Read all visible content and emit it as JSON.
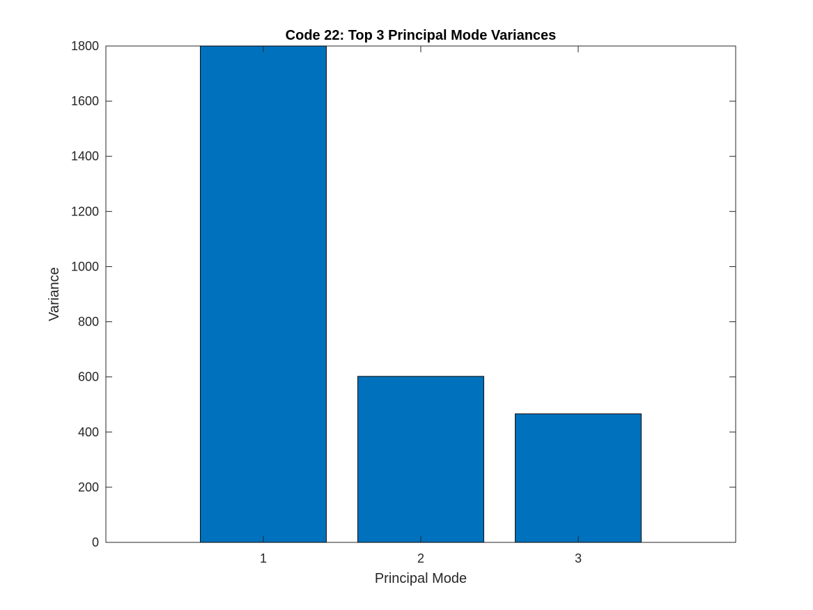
{
  "chart_data": {
    "type": "bar",
    "title": "Code 22: Top 3 Principal Mode Variances",
    "xlabel": "Principal Mode",
    "ylabel": "Variance",
    "categories": [
      "1",
      "2",
      "3"
    ],
    "values": [
      1800,
      602,
      466
    ],
    "xlim": [
      0,
      4
    ],
    "ylim": [
      0,
      1800
    ],
    "yticks": [
      0,
      200,
      400,
      600,
      800,
      1000,
      1200,
      1400,
      1600,
      1800
    ],
    "xticks": [
      1,
      2,
      3
    ],
    "grid": false,
    "legend": "none",
    "bar_color": "#0072BD"
  }
}
